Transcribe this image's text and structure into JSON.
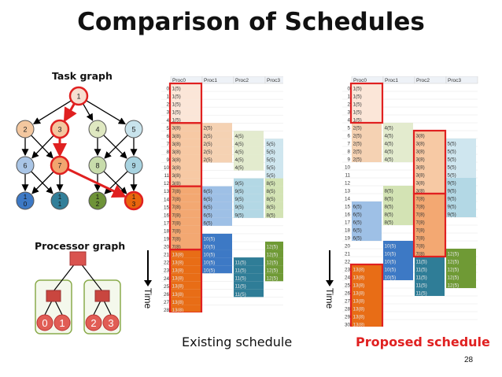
{
  "title": "Comparison of Schedules",
  "task_graph": {
    "label": "Task graph",
    "nodes": [
      {
        "id": "t1",
        "text": "1",
        "color": "#f7ded0",
        "ring": "red"
      },
      {
        "id": "t2",
        "text": "2",
        "color": "#f3c79f",
        "ring": "none"
      },
      {
        "id": "t3",
        "text": "3",
        "color": "#f3c79f",
        "ring": "red"
      },
      {
        "id": "t4",
        "text": "4",
        "color": "#dfe8c1",
        "ring": "none"
      },
      {
        "id": "t5",
        "text": "5",
        "color": "#c8e3ec",
        "ring": "none"
      },
      {
        "id": "t6",
        "text": "6",
        "color": "#a9c5e6",
        "ring": "none"
      },
      {
        "id": "t7",
        "text": "7",
        "color": "#f1a56f",
        "ring": "red"
      },
      {
        "id": "t8",
        "text": "8",
        "color": "#c8dcab",
        "ring": "none"
      },
      {
        "id": "t9",
        "text": "9",
        "color": "#a8d3e0",
        "ring": "none"
      },
      {
        "id": "t10",
        "text": "1\n0",
        "color": "#3d79c5",
        "ring": "none"
      },
      {
        "id": "t11",
        "text": "1\n1",
        "color": "#327f99",
        "ring": "none"
      },
      {
        "id": "t12",
        "text": "1\n2",
        "color": "#6e9338",
        "ring": "none"
      },
      {
        "id": "t13",
        "text": "1\n3",
        "color": "#e8650c",
        "ring": "red"
      }
    ]
  },
  "processor_graph": {
    "label": "Processor graph",
    "procs": [
      "0",
      "1",
      "2",
      "3"
    ]
  },
  "existing": {
    "caption": "Existing schedule",
    "headers": [
      "Proc0",
      "Proc1",
      "Proc2",
      "Proc3"
    ],
    "rows": [
      "0",
      "1",
      "2",
      "3",
      "4",
      "5",
      "6",
      "7",
      "8",
      "9",
      "10",
      "11",
      "12",
      "13",
      "14",
      "15",
      "16",
      "17",
      "18",
      "19",
      "20",
      "21",
      "22",
      "23",
      "24",
      "25",
      "26",
      "27",
      "28"
    ],
    "cells": [
      [
        "1(5)",
        "",
        "",
        ""
      ],
      [
        "1(5)",
        "",
        "",
        ""
      ],
      [
        "1(5)",
        "",
        "",
        ""
      ],
      [
        "1(5)",
        "",
        "",
        ""
      ],
      [
        "1(5)",
        "",
        "",
        ""
      ],
      [
        "3(8)",
        "2(5)",
        "",
        ""
      ],
      [
        "3(8)",
        "2(5)",
        "4(5)",
        ""
      ],
      [
        "3(8)",
        "2(5)",
        "4(5)",
        "5(5)"
      ],
      [
        "3(8)",
        "2(5)",
        "4(5)",
        "5(5)"
      ],
      [
        "3(8)",
        "2(5)",
        "4(5)",
        "5(5)"
      ],
      [
        "3(8)",
        "",
        "4(5)",
        "5(5)"
      ],
      [
        "3(8)",
        "",
        "",
        "5(5)"
      ],
      [
        "3(8)",
        "",
        "9(5)",
        "8(5)"
      ],
      [
        "7(8)",
        "6(5)",
        "9(5)",
        "8(5)"
      ],
      [
        "7(8)",
        "6(5)",
        "9(5)",
        "8(5)"
      ],
      [
        "7(8)",
        "6(5)",
        "9(5)",
        "8(5)"
      ],
      [
        "7(8)",
        "6(5)",
        "9(5)",
        "8(5)"
      ],
      [
        "7(8)",
        "6(5)",
        "",
        ""
      ],
      [
        "7(8)",
        "",
        "",
        ""
      ],
      [
        "7(8)",
        "10(5)",
        "",
        ""
      ],
      [
        "7(8)",
        "10(5)",
        "",
        "12(5)"
      ],
      [
        "13(8)",
        "10(5)",
        "",
        "12(5)"
      ],
      [
        "13(8)",
        "10(5)",
        "11(5)",
        "12(5)"
      ],
      [
        "13(8)",
        "10(5)",
        "11(5)",
        "12(5)"
      ],
      [
        "13(8)",
        "",
        "11(5)",
        "12(5)"
      ],
      [
        "13(8)",
        "",
        "11(5)",
        ""
      ],
      [
        "13(8)",
        "",
        "11(5)",
        ""
      ],
      [
        "13(8)",
        "",
        "",
        ""
      ],
      [
        "13(8)",
        "",
        "",
        ""
      ]
    ]
  },
  "proposed": {
    "caption": "Proposed schedule",
    "headers": [
      "Proc0",
      "Proc1",
      "Proc2",
      "Proc3"
    ],
    "rows": [
      "0",
      "1",
      "2",
      "3",
      "4",
      "5",
      "6",
      "7",
      "8",
      "9",
      "10",
      "11",
      "12",
      "13",
      "14",
      "15",
      "16",
      "17",
      "18",
      "19",
      "20",
      "21",
      "22",
      "23",
      "24",
      "25",
      "26",
      "27",
      "28",
      "29",
      "30"
    ],
    "cells": [
      [
        "1(5)",
        "",
        "",
        ""
      ],
      [
        "1(5)",
        "",
        "",
        ""
      ],
      [
        "1(5)",
        "",
        "",
        ""
      ],
      [
        "1(5)",
        "",
        "",
        ""
      ],
      [
        "1(5)",
        "",
        "",
        ""
      ],
      [
        "2(5)",
        "4(5)",
        "",
        ""
      ],
      [
        "2(5)",
        "4(5)",
        "3(8)",
        ""
      ],
      [
        "2(5)",
        "4(5)",
        "3(8)",
        "5(5)"
      ],
      [
        "2(5)",
        "4(5)",
        "3(8)",
        "5(5)"
      ],
      [
        "2(5)",
        "4(5)",
        "3(8)",
        "5(5)"
      ],
      [
        "",
        "",
        "3(8)",
        "5(5)"
      ],
      [
        "",
        "",
        "3(8)",
        "5(5)"
      ],
      [
        "",
        "",
        "3(8)",
        "9(5)"
      ],
      [
        "",
        "8(5)",
        "3(8)",
        "9(5)"
      ],
      [
        "",
        "8(5)",
        "7(8)",
        "9(5)"
      ],
      [
        "6(5)",
        "8(5)",
        "7(8)",
        "9(5)"
      ],
      [
        "6(5)",
        "8(5)",
        "7(8)",
        "9(5)"
      ],
      [
        "6(5)",
        "8(5)",
        "7(8)",
        ""
      ],
      [
        "6(5)",
        "",
        "7(8)",
        ""
      ],
      [
        "6(5)",
        "",
        "7(8)",
        ""
      ],
      [
        "",
        "10(5)",
        "7(8)",
        ""
      ],
      [
        "",
        "10(5)",
        "7(8)",
        "12(5)"
      ],
      [
        "",
        "10(5)",
        "11(5)",
        "12(5)"
      ],
      [
        "13(8)",
        "10(5)",
        "11(5)",
        "12(5)"
      ],
      [
        "13(8)",
        "10(5)",
        "11(5)",
        "12(5)"
      ],
      [
        "13(8)",
        "",
        "11(5)",
        "12(5)"
      ],
      [
        "13(8)",
        "",
        "11(5)",
        ""
      ],
      [
        "13(8)",
        "",
        "",
        ""
      ],
      [
        "13(8)",
        "",
        "",
        ""
      ],
      [
        "13(8)",
        "",
        "",
        ""
      ],
      [
        "13(8)",
        "",
        "",
        ""
      ]
    ]
  },
  "time_label": "Time",
  "page_number": "28",
  "colors": {
    "1(5)": "#fbe6d8",
    "2(5)": "#f5d2b3",
    "3(8)": "#f7c9a4",
    "4(5)": "#e3ebce",
    "5(5)": "#cfe6ef",
    "6(5)": "#9ec0e6",
    "7(8)": "#f3a872",
    "8(5)": "#d3e3b4",
    "9(5)": "#b3d8e5",
    "10(5)": "#3d79c5",
    "11(5)": "#2f7d97",
    "12(5)": "#6f9a35",
    "13(8)": "#e86d16",
    "highlight": "#e02020"
  }
}
